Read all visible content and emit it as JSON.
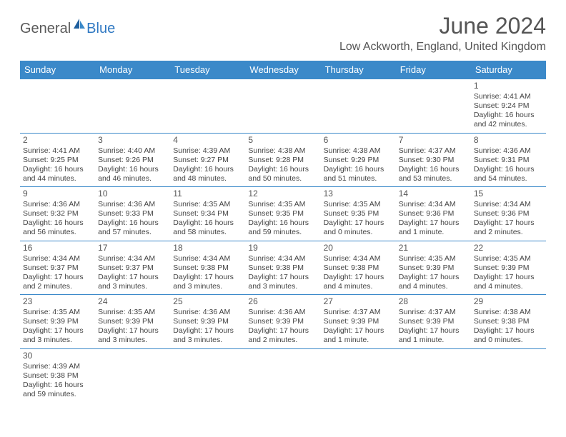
{
  "logo": {
    "text1": "General",
    "text2": "Blue"
  },
  "title": "June 2024",
  "location": "Low Ackworth, England, United Kingdom",
  "colors": {
    "header_bg": "#3b89c9",
    "header_text": "#ffffff",
    "border": "#3b89c9",
    "logo_gray": "#5a5a5a",
    "logo_blue": "#2f78c2"
  },
  "weekdays": [
    "Sunday",
    "Monday",
    "Tuesday",
    "Wednesday",
    "Thursday",
    "Friday",
    "Saturday"
  ],
  "days": [
    {
      "n": 1,
      "sr": "4:41 AM",
      "ss": "9:24 PM",
      "dl": "16 hours and 42 minutes."
    },
    {
      "n": 2,
      "sr": "4:41 AM",
      "ss": "9:25 PM",
      "dl": "16 hours and 44 minutes."
    },
    {
      "n": 3,
      "sr": "4:40 AM",
      "ss": "9:26 PM",
      "dl": "16 hours and 46 minutes."
    },
    {
      "n": 4,
      "sr": "4:39 AM",
      "ss": "9:27 PM",
      "dl": "16 hours and 48 minutes."
    },
    {
      "n": 5,
      "sr": "4:38 AM",
      "ss": "9:28 PM",
      "dl": "16 hours and 50 minutes."
    },
    {
      "n": 6,
      "sr": "4:38 AM",
      "ss": "9:29 PM",
      "dl": "16 hours and 51 minutes."
    },
    {
      "n": 7,
      "sr": "4:37 AM",
      "ss": "9:30 PM",
      "dl": "16 hours and 53 minutes."
    },
    {
      "n": 8,
      "sr": "4:36 AM",
      "ss": "9:31 PM",
      "dl": "16 hours and 54 minutes."
    },
    {
      "n": 9,
      "sr": "4:36 AM",
      "ss": "9:32 PM",
      "dl": "16 hours and 56 minutes."
    },
    {
      "n": 10,
      "sr": "4:36 AM",
      "ss": "9:33 PM",
      "dl": "16 hours and 57 minutes."
    },
    {
      "n": 11,
      "sr": "4:35 AM",
      "ss": "9:34 PM",
      "dl": "16 hours and 58 minutes."
    },
    {
      "n": 12,
      "sr": "4:35 AM",
      "ss": "9:35 PM",
      "dl": "16 hours and 59 minutes."
    },
    {
      "n": 13,
      "sr": "4:35 AM",
      "ss": "9:35 PM",
      "dl": "17 hours and 0 minutes."
    },
    {
      "n": 14,
      "sr": "4:34 AM",
      "ss": "9:36 PM",
      "dl": "17 hours and 1 minute."
    },
    {
      "n": 15,
      "sr": "4:34 AM",
      "ss": "9:36 PM",
      "dl": "17 hours and 2 minutes."
    },
    {
      "n": 16,
      "sr": "4:34 AM",
      "ss": "9:37 PM",
      "dl": "17 hours and 2 minutes."
    },
    {
      "n": 17,
      "sr": "4:34 AM",
      "ss": "9:37 PM",
      "dl": "17 hours and 3 minutes."
    },
    {
      "n": 18,
      "sr": "4:34 AM",
      "ss": "9:38 PM",
      "dl": "17 hours and 3 minutes."
    },
    {
      "n": 19,
      "sr": "4:34 AM",
      "ss": "9:38 PM",
      "dl": "17 hours and 3 minutes."
    },
    {
      "n": 20,
      "sr": "4:34 AM",
      "ss": "9:38 PM",
      "dl": "17 hours and 4 minutes."
    },
    {
      "n": 21,
      "sr": "4:35 AM",
      "ss": "9:39 PM",
      "dl": "17 hours and 4 minutes."
    },
    {
      "n": 22,
      "sr": "4:35 AM",
      "ss": "9:39 PM",
      "dl": "17 hours and 4 minutes."
    },
    {
      "n": 23,
      "sr": "4:35 AM",
      "ss": "9:39 PM",
      "dl": "17 hours and 3 minutes."
    },
    {
      "n": 24,
      "sr": "4:35 AM",
      "ss": "9:39 PM",
      "dl": "17 hours and 3 minutes."
    },
    {
      "n": 25,
      "sr": "4:36 AM",
      "ss": "9:39 PM",
      "dl": "17 hours and 3 minutes."
    },
    {
      "n": 26,
      "sr": "4:36 AM",
      "ss": "9:39 PM",
      "dl": "17 hours and 2 minutes."
    },
    {
      "n": 27,
      "sr": "4:37 AM",
      "ss": "9:39 PM",
      "dl": "17 hours and 1 minute."
    },
    {
      "n": 28,
      "sr": "4:37 AM",
      "ss": "9:39 PM",
      "dl": "17 hours and 1 minute."
    },
    {
      "n": 29,
      "sr": "4:38 AM",
      "ss": "9:38 PM",
      "dl": "17 hours and 0 minutes."
    },
    {
      "n": 30,
      "sr": "4:39 AM",
      "ss": "9:38 PM",
      "dl": "16 hours and 59 minutes."
    }
  ],
  "labels": {
    "sunrise": "Sunrise:",
    "sunset": "Sunset:",
    "daylight": "Daylight:"
  },
  "first_weekday_index": 6
}
